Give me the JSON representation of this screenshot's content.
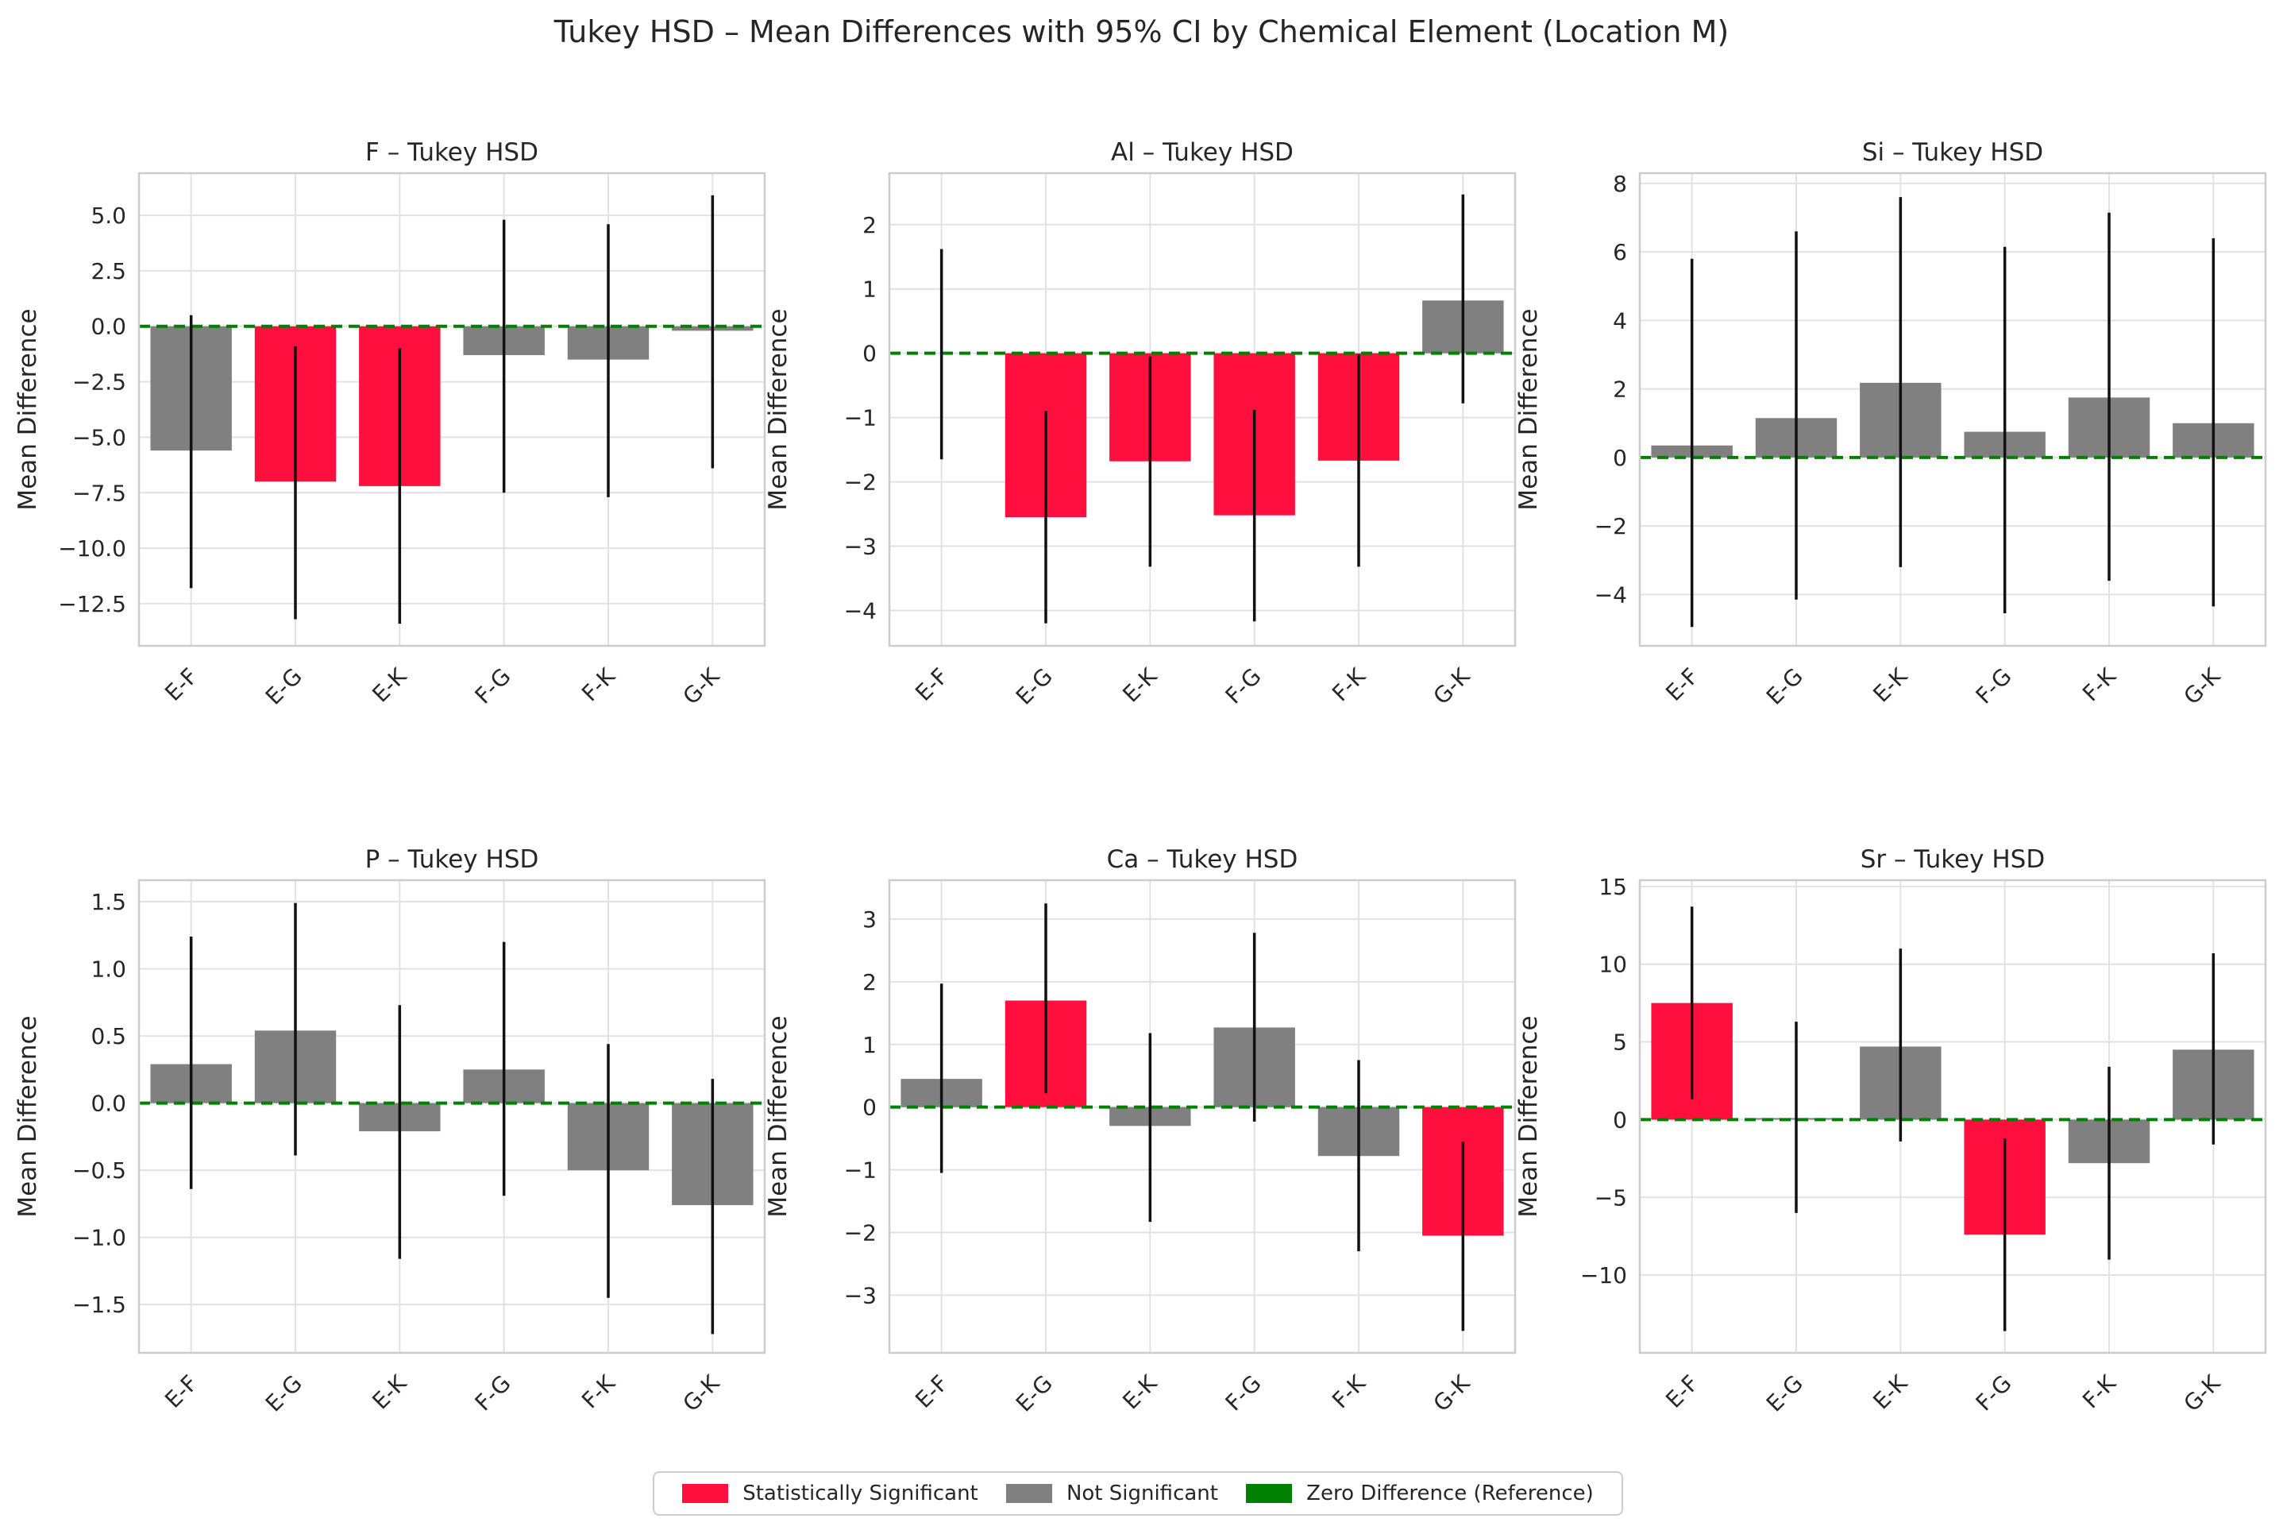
{
  "figure_title": "Tukey HSD – Mean Differences with 95% CI by Chemical Element (Location M)",
  "colors": {
    "significant": "#ff0f3d",
    "not_significant": "#808080",
    "zero_line": "#008000",
    "error_bar": "#111111",
    "grid": "#e2e2e2",
    "axes": "#cccccc"
  },
  "legend": [
    {
      "label": "Statistically Significant",
      "color": "#ff0f3d"
    },
    {
      "label": "Not Significant",
      "color": "#808080"
    },
    {
      "label": "Zero Difference (Reference)",
      "color": "#008000"
    }
  ],
  "chart_data": [
    {
      "type": "bar",
      "title": "F – Tukey HSD",
      "xlabel": "",
      "ylabel": "Mean Difference",
      "categories": [
        "E-F",
        "E-G",
        "E-K",
        "F-G",
        "F-K",
        "G-K"
      ],
      "values": [
        -5.6,
        -7.0,
        -7.2,
        -1.3,
        -1.5,
        -0.2
      ],
      "ci_lower": [
        -11.8,
        -13.2,
        -13.4,
        -7.5,
        -7.7,
        -6.4
      ],
      "ci_upper": [
        0.5,
        -0.9,
        -1.0,
        4.8,
        4.6,
        5.9
      ],
      "significant": [
        false,
        true,
        true,
        false,
        false,
        false
      ],
      "ylim": [
        -14.4,
        6.9
      ],
      "yticks": [
        5.0,
        2.5,
        0.0,
        -2.5,
        -5.0,
        -7.5,
        -10.0,
        -12.5
      ],
      "ytick_labels": [
        "5.0",
        "2.5",
        "0.0",
        "−2.5",
        "−5.0",
        "−7.5",
        "−10.0",
        "−12.5"
      ]
    },
    {
      "type": "bar",
      "title": "Al – Tukey HSD",
      "xlabel": "",
      "ylabel": "Mean Difference",
      "categories": [
        "E-F",
        "E-G",
        "E-K",
        "F-G",
        "F-K",
        "G-K"
      ],
      "values": [
        0.0,
        -2.55,
        -1.68,
        -2.52,
        -1.67,
        0.82
      ],
      "ci_lower": [
        -1.65,
        -4.2,
        -3.32,
        -4.17,
        -3.32,
        -0.78
      ],
      "ci_upper": [
        1.62,
        -0.9,
        -0.05,
        -0.88,
        -0.02,
        2.47
      ],
      "significant": [
        false,
        true,
        true,
        true,
        true,
        false
      ],
      "ylim": [
        -4.55,
        2.8
      ],
      "yticks": [
        2,
        1,
        0,
        -1,
        -2,
        -3,
        -4
      ],
      "ytick_labels": [
        "2",
        "1",
        "0",
        "−1",
        "−2",
        "−3",
        "−4"
      ]
    },
    {
      "type": "bar",
      "title": "Si – Tukey HSD",
      "xlabel": "",
      "ylabel": "Mean Difference",
      "categories": [
        "E-F",
        "E-G",
        "E-K",
        "F-G",
        "F-K",
        "G-K"
      ],
      "values": [
        0.35,
        1.15,
        2.18,
        0.75,
        1.75,
        1.0
      ],
      "ci_lower": [
        -4.95,
        -4.15,
        -3.2,
        -4.55,
        -3.6,
        -4.35
      ],
      "ci_upper": [
        5.8,
        6.6,
        7.6,
        6.15,
        7.15,
        6.4
      ],
      "significant": [
        false,
        false,
        false,
        false,
        false,
        false
      ],
      "ylim": [
        -5.5,
        8.3
      ],
      "yticks": [
        8,
        6,
        4,
        2,
        0,
        -2,
        -4
      ],
      "ytick_labels": [
        "8",
        "6",
        "4",
        "2",
        "0",
        "−2",
        "−4"
      ]
    },
    {
      "type": "bar",
      "title": "P – Tukey HSD",
      "xlabel": "",
      "ylabel": "Mean Difference",
      "categories": [
        "E-F",
        "E-G",
        "E-K",
        "F-G",
        "F-K",
        "G-K"
      ],
      "values": [
        0.29,
        0.54,
        -0.21,
        0.25,
        -0.5,
        -0.76
      ],
      "ci_lower": [
        -0.64,
        -0.39,
        -1.16,
        -0.69,
        -1.45,
        -1.72
      ],
      "ci_upper": [
        1.24,
        1.49,
        0.73,
        1.2,
        0.44,
        0.18
      ],
      "significant": [
        false,
        false,
        false,
        false,
        false,
        false
      ],
      "ylim": [
        -1.86,
        1.66
      ],
      "yticks": [
        1.5,
        1.0,
        0.5,
        0.0,
        -0.5,
        -1.0,
        -1.5
      ],
      "ytick_labels": [
        "1.5",
        "1.0",
        "0.5",
        "0.0",
        "−0.5",
        "−1.0",
        "−1.5"
      ]
    },
    {
      "type": "bar",
      "title": "Ca – Tukey HSD",
      "xlabel": "",
      "ylabel": "Mean Difference",
      "categories": [
        "E-F",
        "E-G",
        "E-K",
        "F-G",
        "F-K",
        "G-K"
      ],
      "values": [
        0.45,
        1.7,
        -0.3,
        1.27,
        -0.78,
        -2.05
      ],
      "ci_lower": [
        -1.05,
        0.22,
        -1.83,
        -0.23,
        -2.3,
        -3.57
      ],
      "ci_upper": [
        1.97,
        3.25,
        1.18,
        2.78,
        0.75,
        -0.55
      ],
      "significant": [
        false,
        true,
        false,
        false,
        false,
        true
      ],
      "ylim": [
        -3.92,
        3.62
      ],
      "yticks": [
        3,
        2,
        1,
        0,
        -1,
        -2,
        -3
      ],
      "ytick_labels": [
        "3",
        "2",
        "1",
        "0",
        "−1",
        "−2",
        "−3"
      ]
    },
    {
      "type": "bar",
      "title": "Sr – Tukey HSD",
      "xlabel": "",
      "ylabel": "Mean Difference",
      "categories": [
        "E-F",
        "E-G",
        "E-K",
        "F-G",
        "F-K",
        "G-K"
      ],
      "values": [
        7.5,
        0.1,
        4.7,
        -7.4,
        -2.8,
        4.5
      ],
      "ci_lower": [
        1.3,
        -6.0,
        -1.4,
        -13.6,
        -9.0,
        -1.6
      ],
      "ci_upper": [
        13.7,
        6.3,
        11.0,
        -1.2,
        3.4,
        10.7
      ],
      "significant": [
        true,
        false,
        false,
        true,
        false,
        false
      ],
      "ylim": [
        -15.0,
        15.4
      ],
      "yticks": [
        15,
        10,
        5,
        0,
        -5,
        -10
      ],
      "ytick_labels": [
        "15",
        "10",
        "5",
        "0",
        "−5",
        "−10"
      ]
    }
  ]
}
